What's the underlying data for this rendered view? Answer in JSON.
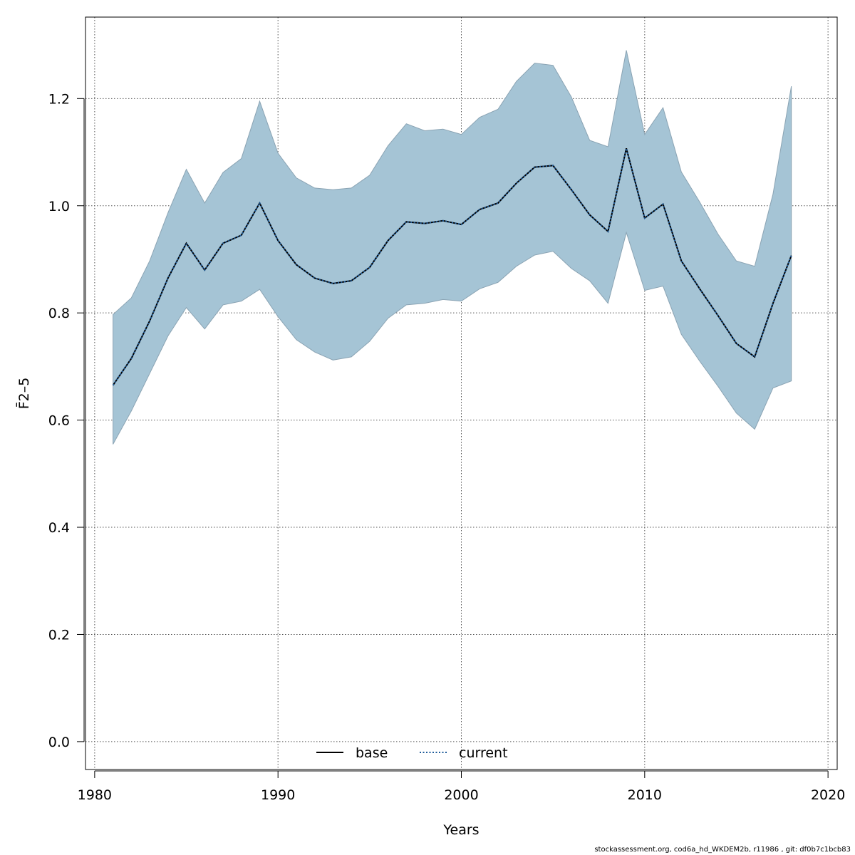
{
  "chart_data": {
    "type": "line",
    "title": "",
    "xlabel": "Years",
    "ylabel": "F̄2–5",
    "xlim": [
      1980,
      2020
    ],
    "ylim": [
      0.0,
      1.3
    ],
    "xticks": [
      1980,
      1990,
      2000,
      2010,
      2020
    ],
    "yticks": [
      0.0,
      0.2,
      0.4,
      0.6,
      0.8,
      1.0,
      1.2
    ],
    "grid": true,
    "legend_position": "bottom-center",
    "colors": {
      "band_fill": "#a5c4d5",
      "band_edge": "#8aa3b3",
      "base": "#000000",
      "current": "#1f5c9a",
      "grid": "#555555"
    },
    "x": [
      1981,
      1982,
      1983,
      1984,
      1985,
      1986,
      1987,
      1988,
      1989,
      1990,
      1991,
      1992,
      1993,
      1994,
      1995,
      1996,
      1997,
      1998,
      1999,
      2000,
      2001,
      2002,
      2003,
      2004,
      2005,
      2006,
      2007,
      2008,
      2009,
      2010,
      2011,
      2012,
      2013,
      2014,
      2015,
      2016,
      2017,
      2018
    ],
    "series": [
      {
        "name": "base",
        "style": "solid",
        "values": [
          0.665,
          0.715,
          0.785,
          0.865,
          0.93,
          0.88,
          0.93,
          0.945,
          1.005,
          0.935,
          0.89,
          0.865,
          0.855,
          0.86,
          0.885,
          0.935,
          0.97,
          0.967,
          0.972,
          0.965,
          0.993,
          1.005,
          1.042,
          1.072,
          1.075,
          1.03,
          0.983,
          0.952,
          1.107,
          0.977,
          1.003,
          0.897,
          0.845,
          0.795,
          0.743,
          0.718,
          0.818,
          0.907
        ]
      },
      {
        "name": "current",
        "style": "dotted",
        "values": [
          0.665,
          0.715,
          0.785,
          0.865,
          0.93,
          0.88,
          0.93,
          0.945,
          1.005,
          0.935,
          0.89,
          0.865,
          0.855,
          0.86,
          0.885,
          0.935,
          0.97,
          0.967,
          0.972,
          0.965,
          0.993,
          1.005,
          1.042,
          1.072,
          1.075,
          1.03,
          0.983,
          0.952,
          1.107,
          0.977,
          1.003,
          0.897,
          0.845,
          0.795,
          0.743,
          0.718,
          0.818,
          0.907
        ]
      }
    ],
    "band": {
      "upper": [
        0.797,
        0.828,
        0.897,
        0.987,
        1.068,
        1.005,
        1.062,
        1.088,
        1.195,
        1.098,
        1.052,
        1.033,
        1.03,
        1.033,
        1.057,
        1.112,
        1.153,
        1.14,
        1.143,
        1.133,
        1.165,
        1.18,
        1.232,
        1.266,
        1.262,
        1.203,
        1.122,
        1.11,
        1.29,
        1.133,
        1.183,
        1.063,
        1.007,
        0.947,
        0.897,
        0.887,
        1.022,
        1.223
      ],
      "lower": [
        0.555,
        0.617,
        0.687,
        0.757,
        0.81,
        0.77,
        0.815,
        0.822,
        0.844,
        0.793,
        0.75,
        0.727,
        0.712,
        0.718,
        0.747,
        0.79,
        0.815,
        0.818,
        0.825,
        0.822,
        0.845,
        0.857,
        0.887,
        0.908,
        0.915,
        0.883,
        0.86,
        0.818,
        0.95,
        0.842,
        0.85,
        0.76,
        0.71,
        0.663,
        0.613,
        0.583,
        0.66,
        0.673
      ]
    }
  },
  "footer": "stockassessment.org, cod6a_hd_WKDEM2b, r11986 , git: df0b7c1bcb83"
}
